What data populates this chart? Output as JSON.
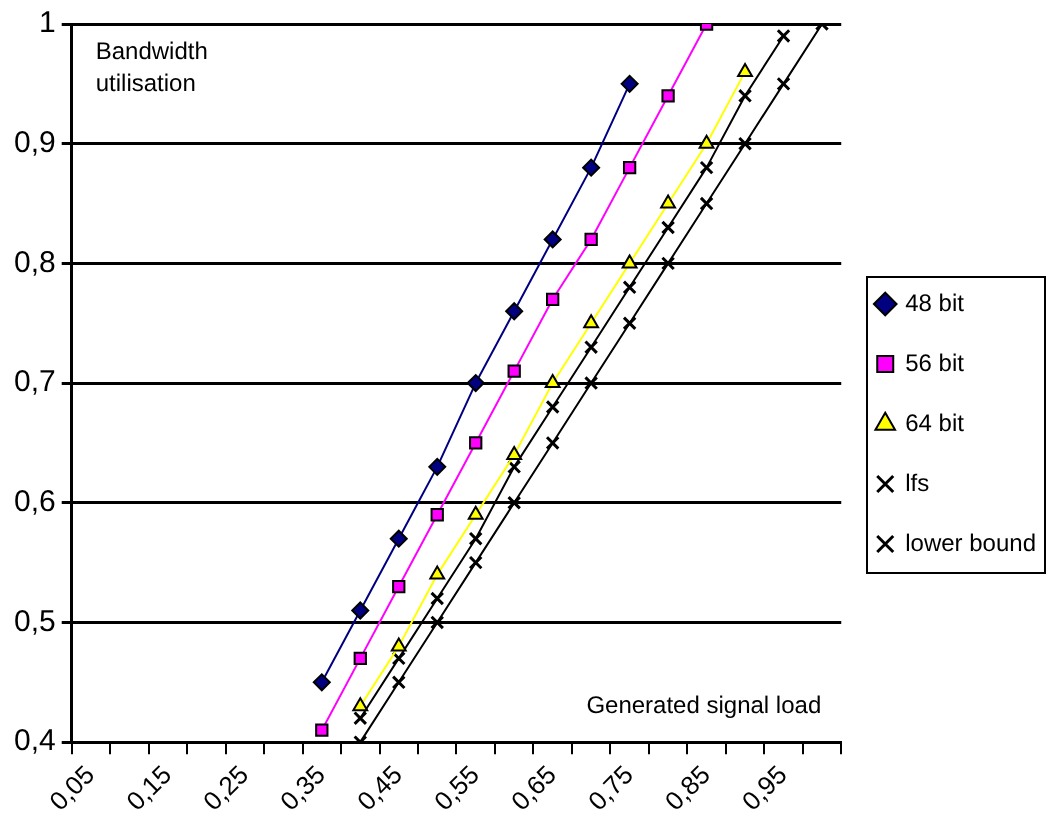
{
  "chart_data": {
    "type": "line",
    "xlabel": "Generated signal load",
    "ylabel": "Bandwidth utilisation",
    "categories": [
      "0,05",
      null,
      "0,15",
      null,
      "0,25",
      null,
      "0,35",
      null,
      "0,45",
      null,
      "0,55",
      null,
      "0,65",
      null,
      "0,75",
      null,
      "0,85",
      null,
      "0,95",
      null
    ],
    "series": [
      {
        "name": "48 bit",
        "color": "#000080",
        "marker": "diamond",
        "values": [
          null,
          null,
          null,
          null,
          null,
          null,
          0.45,
          0.51,
          0.57,
          0.63,
          0.7,
          0.76,
          0.82,
          0.88,
          0.95,
          null,
          null,
          null,
          null,
          null
        ]
      },
      {
        "name": "56 bit",
        "color": "#ff00ff",
        "marker": "square",
        "values": [
          null,
          null,
          null,
          null,
          null,
          null,
          0.41,
          0.47,
          0.53,
          0.59,
          0.65,
          0.71,
          0.77,
          0.82,
          0.88,
          0.94,
          1.0,
          null,
          null,
          null
        ]
      },
      {
        "name": "64 bit",
        "color": "#ffff00",
        "marker": "triangle",
        "values": [
          null,
          null,
          null,
          null,
          null,
          null,
          null,
          0.43,
          0.48,
          0.54,
          0.59,
          0.64,
          0.7,
          0.75,
          0.8,
          0.85,
          0.9,
          0.96,
          null,
          null
        ]
      },
      {
        "name": "lfs",
        "color": "#000000",
        "marker": "cross",
        "values": [
          null,
          null,
          null,
          null,
          null,
          null,
          null,
          0.42,
          0.47,
          0.52,
          0.57,
          0.63,
          0.68,
          0.73,
          0.78,
          0.83,
          0.88,
          0.94,
          0.99,
          null
        ]
      },
      {
        "name": "lower bound",
        "color": "#000000",
        "marker": "cross",
        "values": [
          null,
          null,
          null,
          null,
          null,
          null,
          null,
          0.4,
          0.45,
          0.5,
          0.55,
          0.6,
          0.65,
          0.7,
          0.75,
          0.8,
          0.85,
          0.9,
          0.95,
          1.0
        ]
      }
    ],
    "ylim": [
      0.4,
      1
    ],
    "yticks": [
      {
        "value": 0.4,
        "label": "0,4"
      },
      {
        "value": 0.5,
        "label": "0,5"
      },
      {
        "value": 0.6,
        "label": "0,6"
      },
      {
        "value": 0.7,
        "label": "0,7"
      },
      {
        "value": 0.8,
        "label": "0,8"
      },
      {
        "value": 0.9,
        "label": "0,9"
      },
      1
    ],
    "grid": "y",
    "legend": "right",
    "line_style": "solid"
  }
}
